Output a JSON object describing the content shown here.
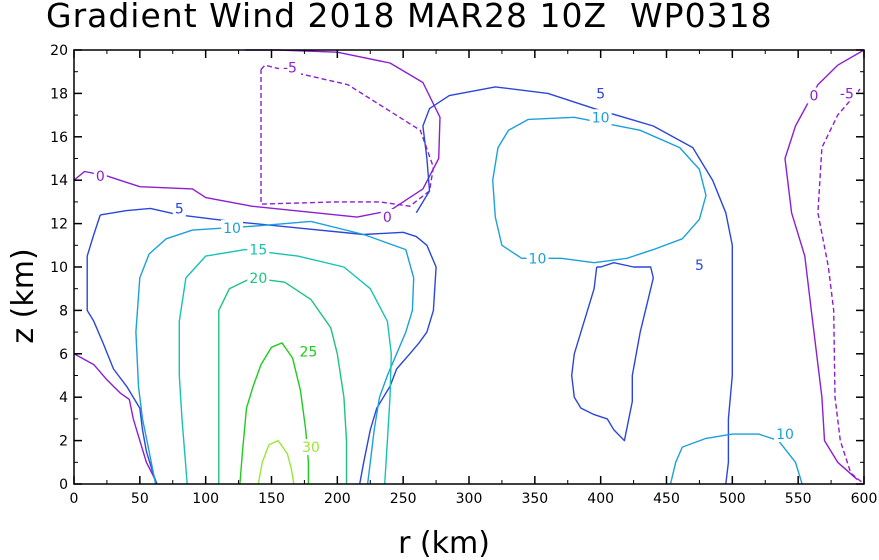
{
  "header": {
    "title": "Gradient Wind 2018 MAR28 10Z  WP0318"
  },
  "chart_data": {
    "type": "contour",
    "title": "Gradient Wind 2018 MAR28 10Z  WP0318",
    "xlabel": "r (km)",
    "ylabel": "z (km)",
    "xlim": [
      0,
      600
    ],
    "ylim": [
      0,
      20
    ],
    "xticks": [
      0,
      50,
      100,
      150,
      200,
      250,
      300,
      350,
      400,
      450,
      500,
      550,
      600
    ],
    "yticks": [
      0,
      2,
      4,
      6,
      8,
      10,
      12,
      14,
      16,
      18,
      20
    ],
    "grid": false,
    "contours": [
      {
        "level": -5,
        "color": "#8c1fd0",
        "dashed": true,
        "points": [
          [
            142,
            19.1
          ],
          [
            145,
            19.3
          ],
          [
            165,
            19.0
          ],
          [
            208,
            18.4
          ],
          [
            263,
            16.3
          ],
          [
            273,
            14.6
          ],
          [
            270,
            13.5
          ],
          [
            255,
            12.8
          ],
          [
            232,
            13.0
          ],
          [
            200,
            13.0
          ],
          [
            142,
            12.9
          ],
          [
            142,
            16.0
          ],
          [
            142,
            19.1
          ]
        ]
      },
      {
        "level": -5,
        "color": "#8c1fd0",
        "dashed": true,
        "points": [
          [
            597,
            18.2
          ],
          [
            580,
            17.0
          ],
          [
            568,
            15.5
          ],
          [
            565,
            12.5
          ],
          [
            573,
            10.0
          ],
          [
            577,
            8.0
          ],
          [
            578,
            4.0
          ],
          [
            582,
            2.0
          ],
          [
            590,
            0.5
          ],
          [
            600,
            0.0
          ]
        ]
      },
      {
        "level": 0,
        "color": "#8c1fd0",
        "dashed": false,
        "points": [
          [
            0,
            14.0
          ],
          [
            8,
            14.4
          ],
          [
            25,
            14.2
          ],
          [
            50,
            13.7
          ],
          [
            90,
            13.6
          ],
          [
            100,
            13.2
          ],
          [
            135,
            12.8
          ],
          [
            215,
            12.3
          ],
          [
            240,
            12.6
          ],
          [
            265,
            13.6
          ],
          [
            277,
            15.0
          ],
          [
            278,
            16.9
          ],
          [
            265,
            18.5
          ],
          [
            240,
            19.4
          ],
          [
            200,
            19.9
          ],
          [
            155,
            20.0
          ],
          [
            130,
            20.0
          ]
        ]
      },
      {
        "level": 0,
        "color": "#8c1fd0",
        "dashed": false,
        "points": [
          [
            600,
            20.0
          ],
          [
            580,
            19.3
          ],
          [
            565,
            18.4
          ],
          [
            548,
            16.5
          ],
          [
            540,
            15.0
          ],
          [
            545,
            12.5
          ],
          [
            555,
            10.5
          ],
          [
            560,
            8.0
          ],
          [
            564,
            6.0
          ],
          [
            568,
            4.0
          ],
          [
            570,
            2.0
          ],
          [
            580,
            1.0
          ],
          [
            595,
            0.2
          ]
        ]
      },
      {
        "level": 0,
        "color": "#8c1fd0",
        "dashed": false,
        "points": [
          [
            0,
            6.0
          ],
          [
            15,
            5.5
          ],
          [
            25,
            4.8
          ],
          [
            35,
            4.2
          ],
          [
            42,
            3.9
          ],
          [
            45,
            3.0
          ],
          [
            50,
            2.0
          ],
          [
            55,
            1.0
          ],
          [
            60,
            0.4
          ],
          [
            63,
            0.0
          ]
        ]
      },
      {
        "level": 5,
        "color": "#2c47d8",
        "dashed": false,
        "points": [
          [
            20,
            12.4
          ],
          [
            40,
            12.6
          ],
          [
            58,
            12.7
          ],
          [
            80,
            12.4
          ],
          [
            120,
            12.1
          ],
          [
            170,
            11.8
          ],
          [
            220,
            11.5
          ],
          [
            250,
            11.6
          ],
          [
            260,
            11.4
          ],
          [
            268,
            11.0
          ],
          [
            275,
            10.0
          ],
          [
            273,
            8.0
          ],
          [
            268,
            7.0
          ],
          [
            262,
            6.5
          ],
          [
            255,
            6.0
          ],
          [
            245,
            5.3
          ],
          [
            240,
            4.5
          ],
          [
            230,
            3.5
          ],
          [
            225,
            2.5
          ],
          [
            220,
            1.0
          ],
          [
            217,
            0.0
          ]
        ]
      },
      {
        "level": 5,
        "color": "#2c47d8",
        "dashed": false,
        "points": [
          [
            20,
            12.4
          ],
          [
            15,
            11.5
          ],
          [
            10,
            10.5
          ],
          [
            10,
            8.0
          ],
          [
            15,
            7.5
          ],
          [
            22,
            6.5
          ],
          [
            30,
            5.3
          ],
          [
            40,
            4.5
          ],
          [
            50,
            3.5
          ],
          [
            52,
            2.5
          ],
          [
            55,
            1.5
          ],
          [
            60,
            0.5
          ],
          [
            63,
            0.0
          ]
        ]
      },
      {
        "level": 5,
        "color": "#2c47d8",
        "dashed": false,
        "points": [
          [
            260,
            12.5
          ],
          [
            270,
            13.5
          ],
          [
            268,
            15.0
          ],
          [
            265,
            16.5
          ],
          [
            270,
            17.3
          ],
          [
            285,
            17.9
          ],
          [
            320,
            18.3
          ],
          [
            360,
            18.0
          ],
          [
            395,
            17.3
          ],
          [
            440,
            16.5
          ],
          [
            470,
            15.5
          ],
          [
            485,
            14.0
          ],
          [
            495,
            12.5
          ],
          [
            500,
            11.0
          ],
          [
            500,
            8.0
          ],
          [
            500,
            5.0
          ],
          [
            497,
            3.0
          ],
          [
            497,
            1.0
          ],
          [
            495,
            0.0
          ]
        ]
      },
      {
        "level": 5,
        "color": "#2c47d8",
        "dashed": false,
        "points": [
          [
            397,
            10.0
          ],
          [
            395,
            9.0
          ],
          [
            390,
            8.0
          ],
          [
            385,
            7.0
          ],
          [
            380,
            6.0
          ],
          [
            378,
            5.0
          ],
          [
            380,
            4.0
          ],
          [
            385,
            3.5
          ],
          [
            395,
            3.2
          ],
          [
            405,
            3.0
          ],
          [
            410,
            2.5
          ],
          [
            418,
            2.0
          ],
          [
            424,
            3.8
          ],
          [
            424,
            5.0
          ],
          [
            430,
            7.0
          ],
          [
            436,
            8.5
          ],
          [
            440,
            9.5
          ],
          [
            438,
            10.0
          ],
          [
            425,
            10.0
          ],
          [
            410,
            10.2
          ],
          [
            400,
            10.0
          ],
          [
            397,
            10.0
          ]
        ]
      },
      {
        "level": 10,
        "color": "#1ca0dc",
        "dashed": false,
        "points": [
          [
            180,
            12.1
          ],
          [
            140,
            11.9
          ],
          [
            90,
            11.7
          ],
          [
            70,
            11.3
          ],
          [
            57,
            10.6
          ],
          [
            50,
            9.5
          ],
          [
            47,
            7.0
          ],
          [
            49,
            4.5
          ],
          [
            52,
            3.0
          ],
          [
            57,
            1.5
          ],
          [
            60,
            0.6
          ],
          [
            62,
            0.0
          ]
        ]
      },
      {
        "level": 10,
        "color": "#1ca0dc",
        "dashed": false,
        "points": [
          [
            180,
            12.1
          ],
          [
            220,
            11.5
          ],
          [
            252,
            10.8
          ],
          [
            258,
            9.5
          ],
          [
            257,
            8.0
          ],
          [
            252,
            7.0
          ],
          [
            245,
            6.0
          ],
          [
            238,
            5.0
          ],
          [
            232,
            4.0
          ],
          [
            228,
            2.5
          ],
          [
            225,
            1.0
          ],
          [
            223,
            0.0
          ]
        ]
      },
      {
        "level": 10,
        "color": "#1ca0dc",
        "dashed": false,
        "points": [
          [
            340,
            10.4
          ],
          [
            325,
            11.0
          ],
          [
            320,
            12.3
          ],
          [
            318,
            14.0
          ],
          [
            322,
            15.5
          ],
          [
            330,
            16.3
          ],
          [
            345,
            16.8
          ],
          [
            380,
            16.9
          ],
          [
            430,
            16.3
          ],
          [
            460,
            15.5
          ],
          [
            475,
            14.5
          ],
          [
            480,
            13.3
          ],
          [
            475,
            12.2
          ],
          [
            462,
            11.3
          ],
          [
            440,
            10.8
          ],
          [
            420,
            10.4
          ],
          [
            395,
            10.2
          ],
          [
            370,
            10.4
          ],
          [
            350,
            10.4
          ],
          [
            340,
            10.4
          ]
        ]
      },
      {
        "level": 10,
        "color": "#1ca0dc",
        "dashed": false,
        "points": [
          [
            453,
            0.0
          ],
          [
            457,
            1.0
          ],
          [
            462,
            1.7
          ],
          [
            480,
            2.1
          ],
          [
            500,
            2.3
          ],
          [
            520,
            2.3
          ],
          [
            535,
            2.0
          ],
          [
            548,
            1.0
          ],
          [
            553,
            0.0
          ]
        ]
      },
      {
        "level": 15,
        "color": "#17c2b4",
        "dashed": false,
        "points": [
          [
            130,
            10.8
          ],
          [
            100,
            10.5
          ],
          [
            85,
            9.5
          ],
          [
            80,
            7.5
          ],
          [
            80,
            5.0
          ],
          [
            82,
            3.0
          ],
          [
            84,
            1.5
          ],
          [
            86,
            0.0
          ]
        ]
      },
      {
        "level": 15,
        "color": "#17c2b4",
        "dashed": false,
        "points": [
          [
            130,
            10.8
          ],
          [
            170,
            10.5
          ],
          [
            205,
            10.0
          ],
          [
            225,
            9.0
          ],
          [
            238,
            7.5
          ],
          [
            241,
            6.0
          ],
          [
            240,
            4.0
          ],
          [
            238,
            2.0
          ],
          [
            236,
            0.0
          ]
        ]
      },
      {
        "level": 20,
        "color": "#1cc47e",
        "dashed": false,
        "points": [
          [
            110,
            0.0
          ],
          [
            110,
            2.0
          ],
          [
            110,
            4.0
          ],
          [
            110,
            6.0
          ],
          [
            110,
            8.0
          ],
          [
            118,
            9.0
          ],
          [
            135,
            9.5
          ],
          [
            160,
            9.3
          ],
          [
            180,
            8.5
          ],
          [
            195,
            7.2
          ],
          [
            200,
            6.0
          ],
          [
            205,
            4.0
          ],
          [
            207,
            2.0
          ],
          [
            207,
            0.0
          ]
        ]
      },
      {
        "level": 25,
        "color": "#1ecb1e",
        "dashed": false,
        "points": [
          [
            126,
            0.0
          ],
          [
            128,
            1.5
          ],
          [
            131,
            3.5
          ],
          [
            136,
            4.5
          ],
          [
            142,
            5.5
          ],
          [
            150,
            6.3
          ],
          [
            158,
            6.5
          ],
          [
            166,
            5.8
          ],
          [
            172,
            4.3
          ],
          [
            176,
            2.5
          ],
          [
            178,
            1.0
          ],
          [
            178,
            0.0
          ]
        ]
      },
      {
        "level": 30,
        "color": "#9be636",
        "dashed": false,
        "points": [
          [
            140,
            0.0
          ],
          [
            143,
            1.0
          ],
          [
            148,
            1.8
          ],
          [
            155,
            2.0
          ],
          [
            162,
            1.4
          ],
          [
            165,
            0.7
          ],
          [
            167,
            0.0
          ]
        ]
      }
    ],
    "contour_labels": [
      {
        "text": "-5",
        "x": 164,
        "y": 19.2,
        "color": "#8c1fd0"
      },
      {
        "text": "-5",
        "x": 587,
        "y": 18.0,
        "color": "#8c1fd0"
      },
      {
        "text": "0",
        "x": 20,
        "y": 14.2,
        "color": "#8c1fd0"
      },
      {
        "text": "0",
        "x": 238,
        "y": 12.3,
        "color": "#8c1fd0"
      },
      {
        "text": "0",
        "x": 562,
        "y": 17.9,
        "color": "#8c1fd0"
      },
      {
        "text": "5",
        "x": 80,
        "y": 12.7,
        "color": "#2c47d8"
      },
      {
        "text": "5",
        "x": 400,
        "y": 18.0,
        "color": "#2c47d8"
      },
      {
        "text": "5",
        "x": 475,
        "y": 10.1,
        "color": "#2c47d8"
      },
      {
        "text": "10",
        "x": 120,
        "y": 11.8,
        "color": "#1ca0dc"
      },
      {
        "text": "10",
        "x": 400,
        "y": 16.9,
        "color": "#1ca0dc"
      },
      {
        "text": "10",
        "x": 352,
        "y": 10.4,
        "color": "#1ca0dc"
      },
      {
        "text": "10",
        "x": 540,
        "y": 2.3,
        "color": "#1ca0dc"
      },
      {
        "text": "15",
        "x": 140,
        "y": 10.8,
        "color": "#17c2b4"
      },
      {
        "text": "20",
        "x": 140,
        "y": 9.5,
        "color": "#1cc47e"
      },
      {
        "text": "25",
        "x": 178,
        "y": 6.1,
        "color": "#1ecb1e"
      },
      {
        "text": "30",
        "x": 180,
        "y": 1.7,
        "color": "#9be636"
      }
    ]
  }
}
